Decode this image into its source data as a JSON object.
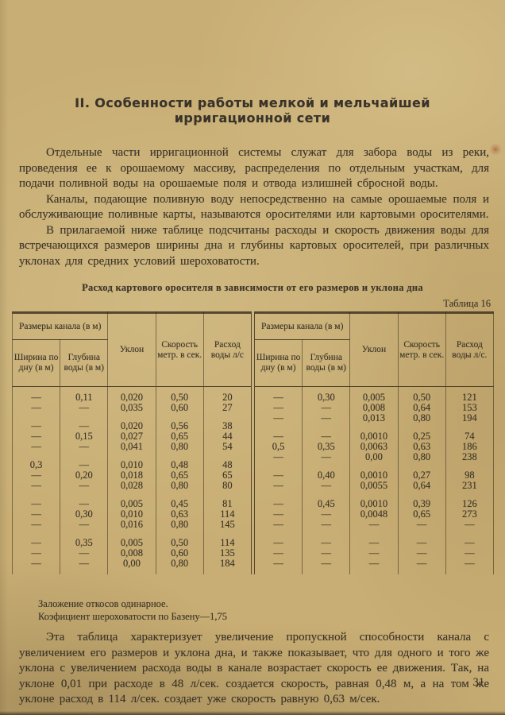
{
  "colors": {
    "paper": "#c8ae74",
    "ink": "#3c352a"
  },
  "content": {
    "heading": "II. Особенности работы мелкой и мельчайшей ирригационной сети",
    "paragraphs": [
      "Отдельные части ирригационной системы служат для забора воды из реки, проведения ее к орошаемому массиву, распределения по отдельным участкам, для подачи поливной воды на орошаемые поля и отвода излишней сбросной воды.",
      "Каналы, подающие поливную воду непосредственно на самые орошаемые поля и обслуживающие поливные карты, называются оросителями или картовыми оросителями.",
      "В прилагаемой ниже таблице подсчитаны расходы и скорость движения воды для встречающихся размеров ширины дна и глубины картовых оросителей, при различных уклонах для средних условий шероховатости."
    ],
    "footnotes": [
      "Заложение откосов одинарное.",
      "Коэфициент шероховатости по Базену—1,75"
    ],
    "closing": "Эта таблица характеризует увеличение пропускной способности канала с увеличением его размеров и уклона дна, и также показывает, что для одного и того же уклона с увеличением расхода воды в канале возрастает скорость ее движения. Так, на уклоне 0,01 при расходе в 48 л/сек. создается скорость, равная 0,48 м, а на том же уклоне расход в 114 л/сек. создает уже скорость равную 0,63 м/сек.",
    "page_number": "31"
  },
  "table": {
    "caption": "Расход картового оросителя в зависимости от его размеров и уклона дна",
    "label": "Таблица 16",
    "headers": {
      "sizes_group": "Размеры канала (в м)",
      "width": "Ширина по дну (в м)",
      "depth": "Глубина воды (в м)",
      "slope": "Уклон",
      "speed": "Скорость метр. в сек.",
      "flow_left": "Расход воды л/с",
      "flow_right": "Расход воды л/с."
    },
    "left_groups": [
      {
        "rows": [
          [
            "—",
            "0,11",
            "0,020",
            "0,50",
            "20"
          ],
          [
            "—",
            "—",
            "0,035",
            "0,60",
            "27"
          ]
        ]
      },
      {
        "rows": [
          [
            "—",
            "—",
            "0,020",
            "0,56",
            "38"
          ],
          [
            "—",
            "0,15",
            "0,027",
            "0,65",
            "44"
          ],
          [
            "—",
            "—",
            "0,041",
            "0,80",
            "54"
          ]
        ]
      },
      {
        "rows": [
          [
            "0,3",
            "—",
            "0,010",
            "0,48",
            "48"
          ],
          [
            "—",
            "0,20",
            "0,018",
            "0,65",
            "65"
          ],
          [
            "—",
            "—",
            "0,028",
            "0,80",
            "80"
          ]
        ]
      },
      {
        "rows": [
          [
            "—",
            "—",
            "0,005",
            "0,45",
            "81"
          ],
          [
            "—",
            "0,30",
            "0,010",
            "0,63",
            "114"
          ],
          [
            "—",
            "—",
            "0,016",
            "0,80",
            "145"
          ]
        ]
      },
      {
        "rows": [
          [
            "—",
            "0,35",
            "0,005",
            "0,50",
            "114"
          ],
          [
            "—",
            "—",
            "0,008",
            "0,60",
            "135"
          ],
          [
            "—",
            "—",
            "0,00",
            "0,80",
            "184"
          ]
        ]
      }
    ],
    "right_groups": [
      {
        "rows": [
          [
            "—",
            "0,30",
            "0,005",
            "0,50",
            "121"
          ],
          [
            "—",
            "—",
            "0,008",
            "0,64",
            "153"
          ],
          [
            "—",
            "—",
            "0,013",
            "0,80",
            "194"
          ]
        ]
      },
      {
        "rows": [
          [
            "—",
            "—",
            "0,0010",
            "0,25",
            "74"
          ],
          [
            "0,5",
            "0,35",
            "0,0063",
            "0,63",
            "186"
          ],
          [
            "—",
            "—",
            "0,00",
            "0,80",
            "238"
          ]
        ]
      },
      {
        "rows": [
          [
            "—",
            "0,40",
            "0,0010",
            "0,27",
            "98"
          ],
          [
            "—",
            "—",
            "0,0055",
            "0,64",
            "231"
          ]
        ]
      },
      {
        "rows": [
          [
            "—",
            "0,45",
            "0,0010",
            "0,39",
            "126"
          ],
          [
            "—",
            "—",
            "0,0048",
            "0,65",
            "273"
          ],
          [
            "—",
            "—",
            "—",
            "—",
            "—"
          ]
        ]
      },
      {
        "rows": [
          [
            "—",
            "—",
            "—",
            "—",
            "—"
          ],
          [
            "—",
            "—",
            "—",
            "—",
            "—"
          ],
          [
            "—",
            "—",
            "—",
            "—",
            "—"
          ]
        ]
      }
    ]
  }
}
